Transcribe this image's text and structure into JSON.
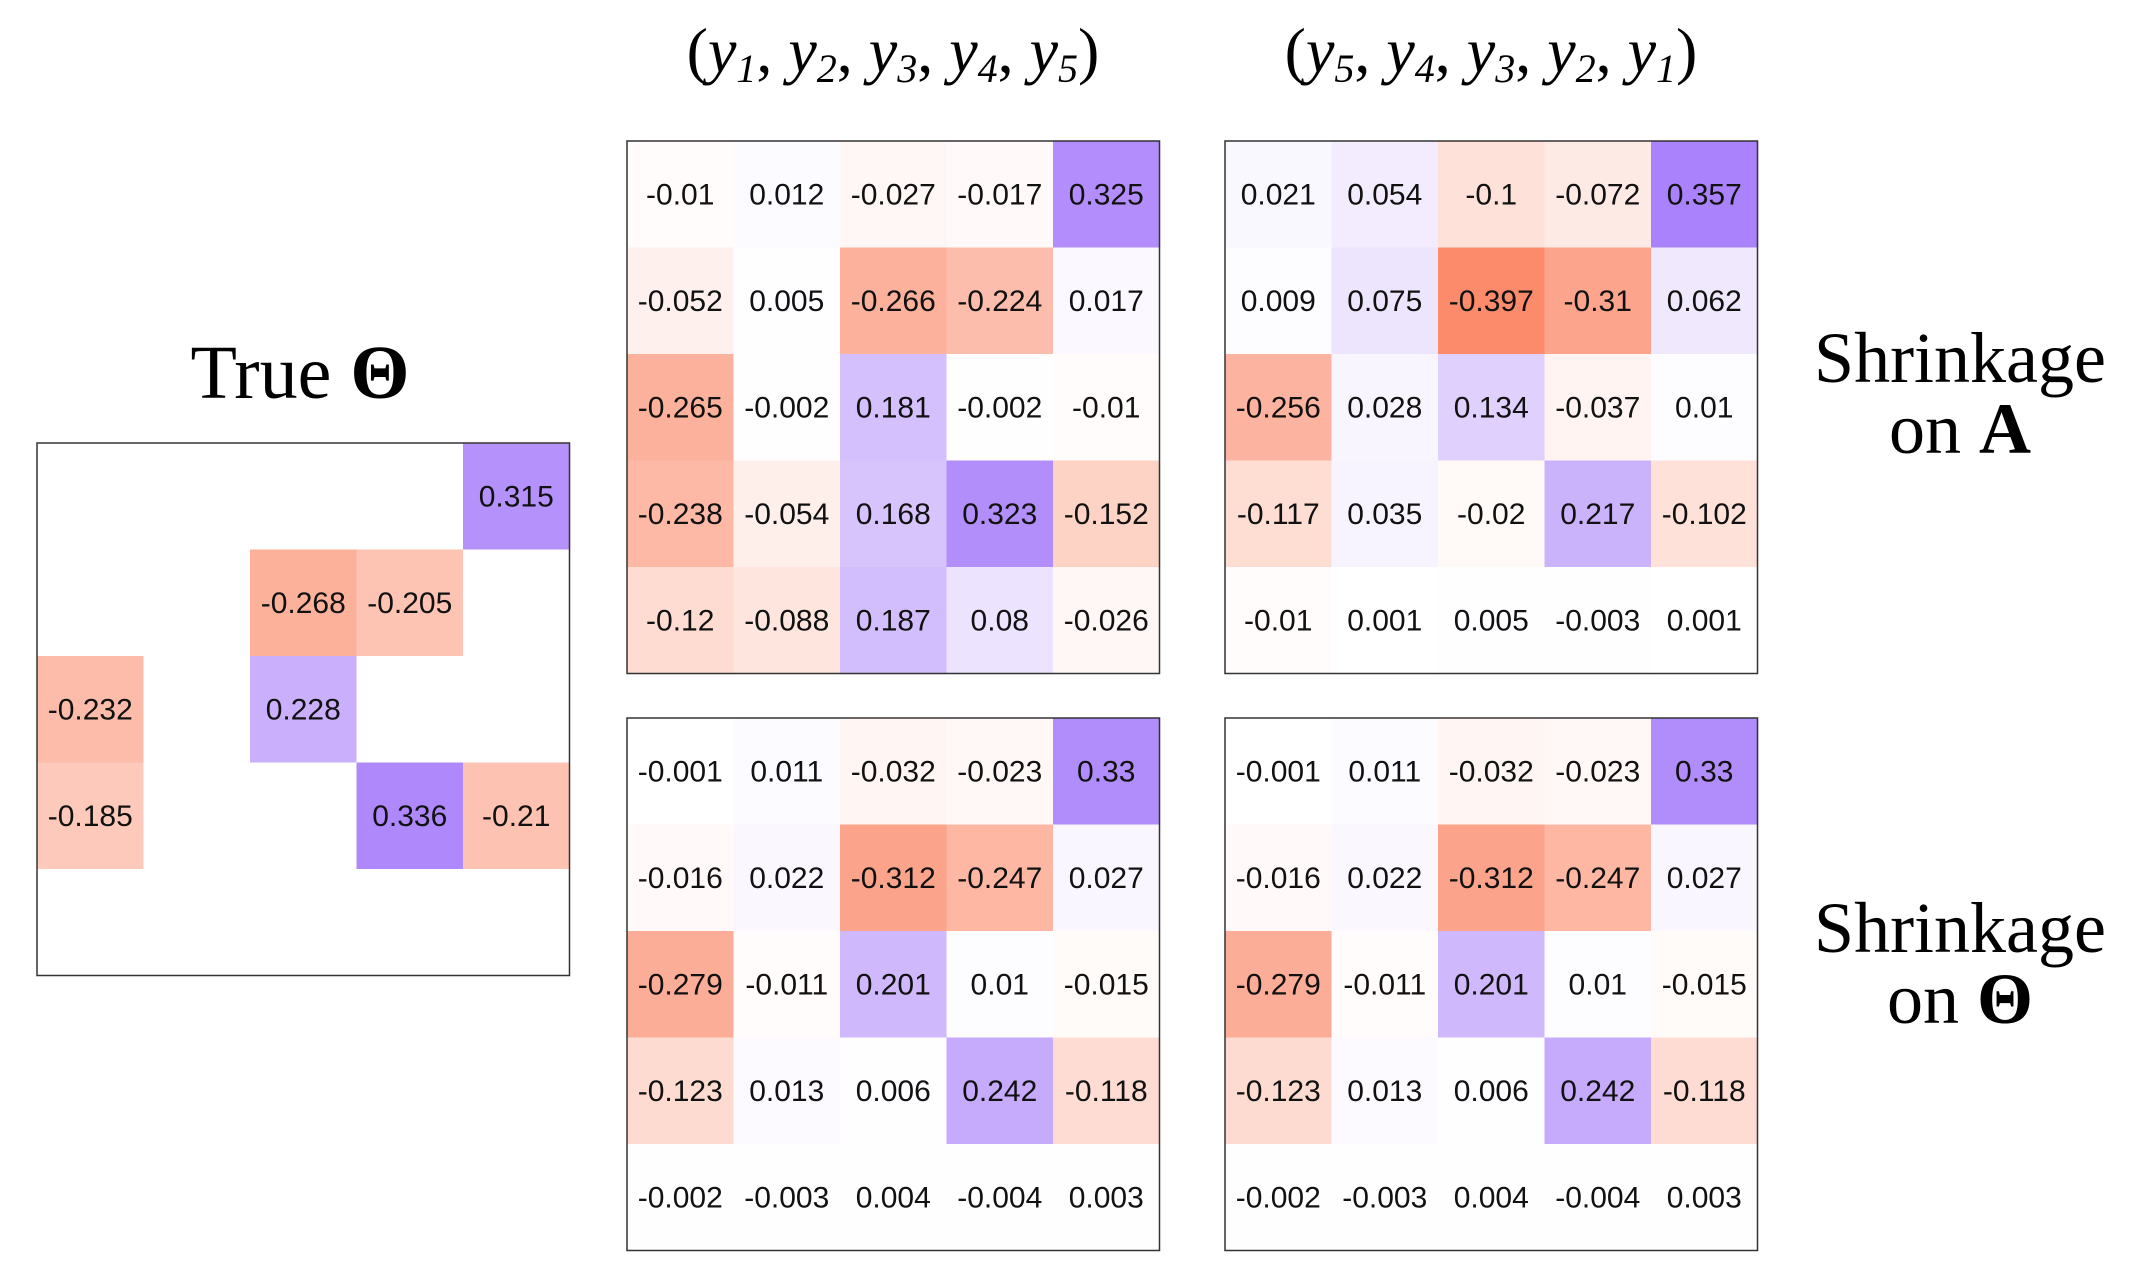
{
  "chart_data": {
    "type": "heatmap",
    "color_scale": {
      "negative": "#fb8a6a",
      "zero": "#ffffff",
      "positive": "#a073fa",
      "max_abs": 0.4
    },
    "titles": {
      "true_theta": "True Θ",
      "column_left": "(y1, y2, y3, y4, y5)",
      "column_right": "(y5, y4, y3, y2, y1)",
      "row_top": [
        "Shrinkage",
        "on A"
      ],
      "row_bottom": [
        "Shrinkage",
        "on Θ"
      ]
    },
    "panels": [
      {
        "id": "true-theta",
        "values": [
          [
            null,
            null,
            null,
            null,
            0.315
          ],
          [
            null,
            null,
            -0.268,
            -0.205,
            null
          ],
          [
            -0.232,
            null,
            0.228,
            null,
            null
          ],
          [
            -0.185,
            null,
            null,
            0.336,
            -0.21
          ],
          [
            null,
            null,
            null,
            null,
            null
          ]
        ]
      },
      {
        "id": "shrinkage-a-forward",
        "values": [
          [
            -0.01,
            0.012,
            -0.027,
            -0.017,
            0.325
          ],
          [
            -0.052,
            0.005,
            -0.266,
            -0.224,
            0.017
          ],
          [
            -0.265,
            -0.002,
            0.181,
            -0.002,
            -0.01
          ],
          [
            -0.238,
            -0.054,
            0.168,
            0.323,
            -0.152
          ],
          [
            -0.12,
            -0.088,
            0.187,
            0.08,
            -0.026
          ]
        ]
      },
      {
        "id": "shrinkage-a-reverse",
        "values": [
          [
            0.021,
            0.054,
            -0.1,
            -0.072,
            0.357
          ],
          [
            0.009,
            0.075,
            -0.397,
            -0.31,
            0.062
          ],
          [
            -0.256,
            0.028,
            0.134,
            -0.037,
            0.01
          ],
          [
            -0.117,
            0.035,
            -0.02,
            0.217,
            -0.102
          ],
          [
            -0.01,
            0.001,
            0.005,
            -0.003,
            0.001
          ]
        ]
      },
      {
        "id": "shrinkage-theta-forward",
        "values": [
          [
            -0.001,
            0.011,
            -0.032,
            -0.023,
            0.33
          ],
          [
            -0.016,
            0.022,
            -0.312,
            -0.247,
            0.027
          ],
          [
            -0.279,
            -0.011,
            0.201,
            0.01,
            -0.015
          ],
          [
            -0.123,
            0.013,
            0.006,
            0.242,
            -0.118
          ],
          [
            -0.002,
            -0.003,
            0.004,
            -0.004,
            0.003
          ]
        ]
      },
      {
        "id": "shrinkage-theta-reverse",
        "values": [
          [
            -0.001,
            0.011,
            -0.032,
            -0.023,
            0.33
          ],
          [
            -0.016,
            0.022,
            -0.312,
            -0.247,
            0.027
          ],
          [
            -0.279,
            -0.011,
            0.201,
            0.01,
            -0.015
          ],
          [
            -0.123,
            0.013,
            0.006,
            0.242,
            -0.118
          ],
          [
            -0.002,
            -0.003,
            0.004,
            -0.004,
            0.003
          ]
        ]
      }
    ]
  }
}
